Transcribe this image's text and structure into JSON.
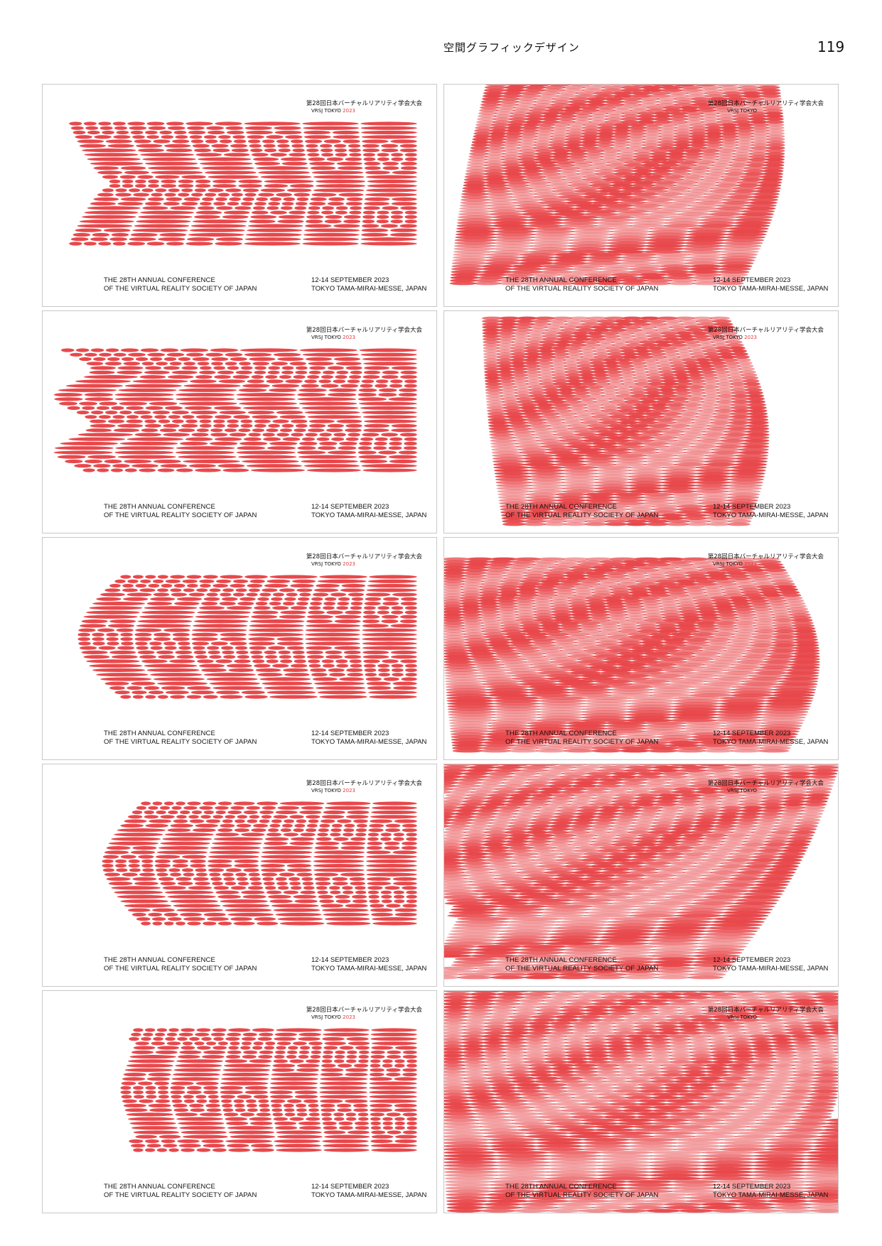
{
  "header": {
    "section_title": "空間グラフィックデザイン",
    "page_number": "119"
  },
  "colors": {
    "accent_red": "#e8484b",
    "text": "#111111",
    "border": "#c8c8c8"
  },
  "poster": {
    "jp_title": "第28回日本バーチャルリアリティ学会大会",
    "vrsj_label": "VRSJ TOKYO",
    "year": "2023",
    "conference_line1": "THE 28TH ANNUAL CONFERENCE",
    "conference_line2": "OF THE VIRTUAL REALITY SOCIETY OF JAPAN",
    "date": "12-14 SEPTEMBER 2023",
    "venue": "TOKYO TAMA-MIRAI-MESSE, JAPAN"
  },
  "cards": [
    {
      "variant": "2d",
      "shape": "concave",
      "show_year": true
    },
    {
      "variant": "3d",
      "shape": "box-top",
      "show_year": false
    },
    {
      "variant": "2d",
      "shape": "wave",
      "show_year": true
    },
    {
      "variant": "3d",
      "shape": "box-tall",
      "show_year": true
    },
    {
      "variant": "2d",
      "shape": "round",
      "show_year": true
    },
    {
      "variant": "3d",
      "shape": "slab",
      "show_year": true
    },
    {
      "variant": "2d",
      "shape": "tapered",
      "show_year": true
    },
    {
      "variant": "3d",
      "shape": "diagonal",
      "show_year": false
    },
    {
      "variant": "2d",
      "shape": "narrow",
      "show_year": true
    },
    {
      "variant": "3d",
      "shape": "full",
      "show_year": false
    }
  ]
}
